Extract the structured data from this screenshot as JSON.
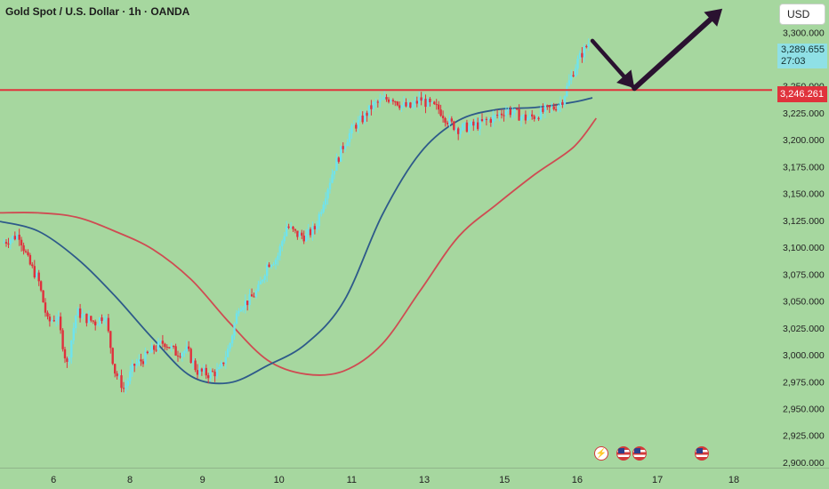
{
  "header": {
    "title": "Gold Spot / U.S. Dollar · 1h · OANDA",
    "currency": "USD"
  },
  "price_labels": {
    "current_price": "3,289.655",
    "countdown": "27:03",
    "level_price": "3,246.261"
  },
  "events": [
    {
      "name": "lightning-event-icon",
      "glyph": "⚡"
    },
    {
      "name": "us-flag-event-icon",
      "glyph": ""
    },
    {
      "name": "us-flag-event-icon",
      "glyph": ""
    },
    {
      "name": "us-flag-event-icon",
      "glyph": ""
    }
  ],
  "colors": {
    "background": "#a6d79f",
    "bull_candle": "#6fe3ee",
    "bear_candle": "#e0303c",
    "ma_fast": "#2e5a8a",
    "ma_slow": "#cf4b52",
    "level_line": "#e0333c",
    "arrow": "#2a1230"
  },
  "chart_data": {
    "type": "candlestick",
    "title": "Gold Spot / U.S. Dollar · 1h · OANDA",
    "x_ticks": [
      "6",
      "8",
      "9",
      "10",
      "11",
      "13",
      "15",
      "16",
      "17",
      "18"
    ],
    "x_tick_positions": [
      5.7,
      7.7,
      9.6,
      11.6,
      13.5,
      15.4,
      17.5,
      19.4,
      21.5,
      23.5
    ],
    "x_range": [
      4.3,
      24.5
    ],
    "ylim": [
      2895,
      3330
    ],
    "y_ticks": [
      2900,
      2925,
      2950,
      2975,
      3000,
      3025,
      3050,
      3075,
      3100,
      3125,
      3150,
      3175,
      3200,
      3225,
      3250,
      3275,
      3300
    ],
    "y_tick_labels": [
      "2,900.000",
      "2,925.000",
      "2,950.000",
      "2,975.000",
      "3,000.000",
      "3,025.000",
      "3,050.000",
      "3,075.000",
      "3,100.000",
      "3,125.000",
      "3,150.000",
      "3,175.000",
      "3,200.000",
      "3,225.000",
      "3,250.000",
      "3,275.000",
      "3,300.000"
    ],
    "candle_close_path": [
      [
        4.35,
        3104
      ],
      [
        4.8,
        3112
      ],
      [
        5.05,
        3086
      ],
      [
        5.3,
        3070
      ],
      [
        5.55,
        3030
      ],
      [
        5.8,
        3036
      ],
      [
        6.05,
        2990
      ],
      [
        6.3,
        3040
      ],
      [
        6.55,
        3034
      ],
      [
        6.8,
        3030
      ],
      [
        7.05,
        3038
      ],
      [
        7.3,
        2985
      ],
      [
        7.55,
        2968
      ],
      [
        7.8,
        2990
      ],
      [
        8.05,
        2996
      ],
      [
        8.3,
        3005
      ],
      [
        8.6,
        3012
      ],
      [
        8.9,
        3002
      ],
      [
        9.2,
        3004
      ],
      [
        9.45,
        2985
      ],
      [
        9.75,
        2982
      ],
      [
        10.05,
        2985
      ],
      [
        10.3,
        3008
      ],
      [
        10.55,
        3046
      ],
      [
        10.8,
        3050
      ],
      [
        11.05,
        3060
      ],
      [
        11.3,
        3085
      ],
      [
        11.55,
        3090
      ],
      [
        11.8,
        3120
      ],
      [
        12.05,
        3112
      ],
      [
        12.3,
        3110
      ],
      [
        12.55,
        3118
      ],
      [
        12.8,
        3148
      ],
      [
        13.05,
        3175
      ],
      [
        13.3,
        3196
      ],
      [
        13.55,
        3212
      ],
      [
        13.8,
        3220
      ],
      [
        14.05,
        3232
      ],
      [
        14.3,
        3236
      ],
      [
        14.55,
        3240
      ],
      [
        14.8,
        3232
      ],
      [
        15.05,
        3230
      ],
      [
        15.3,
        3238
      ],
      [
        15.55,
        3232
      ],
      [
        15.8,
        3228
      ],
      [
        16.05,
        3216
      ],
      [
        16.3,
        3210
      ],
      [
        16.55,
        3212
      ],
      [
        16.8,
        3214
      ],
      [
        17.05,
        3218
      ],
      [
        17.3,
        3222
      ],
      [
        17.55,
        3228
      ],
      [
        17.8,
        3224
      ],
      [
        18.05,
        3220
      ],
      [
        18.3,
        3222
      ],
      [
        18.55,
        3227
      ],
      [
        18.8,
        3230
      ],
      [
        19.0,
        3236
      ],
      [
        19.2,
        3255
      ],
      [
        19.4,
        3272
      ],
      [
        19.55,
        3282
      ],
      [
        19.7,
        3289.655
      ]
    ],
    "series": [
      {
        "name": "",
        "type": "line",
        "color": "#2e5a8a",
        "points": [
          [
            4.3,
            3124
          ],
          [
            5.3,
            3115
          ],
          [
            6.3,
            3090
          ],
          [
            7.3,
            3055
          ],
          [
            8.3,
            3015
          ],
          [
            9.3,
            2980
          ],
          [
            10.3,
            2974
          ],
          [
            11.3,
            2990
          ],
          [
            12.3,
            3010
          ],
          [
            13.3,
            3050
          ],
          [
            14.3,
            3130
          ],
          [
            15.3,
            3188
          ],
          [
            16.3,
            3218
          ],
          [
            17.3,
            3228
          ],
          [
            18.3,
            3230
          ],
          [
            19.3,
            3235
          ],
          [
            19.8,
            3239
          ]
        ]
      },
      {
        "name": "",
        "type": "line",
        "color": "#cf4b52",
        "points": [
          [
            4.3,
            3132
          ],
          [
            5.3,
            3132
          ],
          [
            6.3,
            3128
          ],
          [
            7.3,
            3115
          ],
          [
            8.3,
            3098
          ],
          [
            9.3,
            3070
          ],
          [
            10.3,
            3030
          ],
          [
            11.3,
            2995
          ],
          [
            12.3,
            2982
          ],
          [
            13.3,
            2985
          ],
          [
            14.3,
            3010
          ],
          [
            15.3,
            3060
          ],
          [
            16.3,
            3110
          ],
          [
            17.3,
            3140
          ],
          [
            18.3,
            3168
          ],
          [
            19.3,
            3193
          ],
          [
            19.9,
            3220
          ]
        ]
      }
    ],
    "horizontal_lines": [
      {
        "value": 3246.261,
        "color": "#e0333c"
      }
    ],
    "annotation_arrow": {
      "points": [
        [
          19.8,
          3292
        ],
        [
          20.9,
          3248
        ],
        [
          23.2,
          3322
        ]
      ],
      "color": "#2a1230"
    },
    "grid": false,
    "legend": "none"
  }
}
